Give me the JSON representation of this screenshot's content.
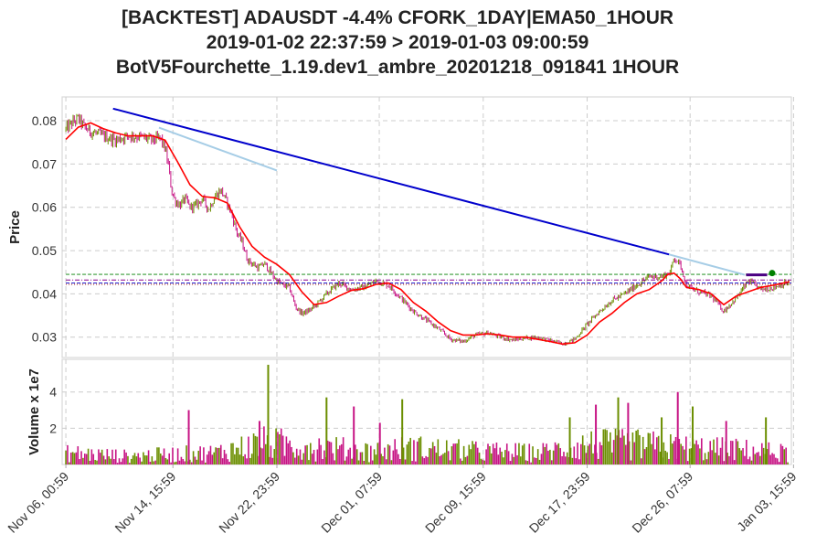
{
  "title": {
    "line1": "[BACKTEST] ADAUSDT -4.4% CFORK_1DAY|EMA50_1HOUR",
    "line2": "2019-01-02 22:37:59 > 2019-01-03 09:00:59",
    "line3": "BotV5Fourchette_1.19.dev1_ambre_20201218_091841 1HOUR"
  },
  "chart_data": [
    {
      "type": "line",
      "panel": "price",
      "ylabel": "Price",
      "ylim": [
        0.0253,
        0.0855
      ],
      "yticks": [
        0.08,
        0.07,
        0.06,
        0.05,
        0.04,
        0.03
      ],
      "ytick_labels": [
        "0.08",
        "0.07",
        "0.06",
        "0.05",
        "0.04",
        "0.03"
      ],
      "x_domain_days": [
        -0.3,
        58.45
      ],
      "xticks_days": [
        0,
        8.625,
        17,
        25.25,
        33.625,
        42,
        50.292,
        58.625
      ],
      "xtick_labels": [
        "Nov 06, 00:59",
        "Nov 14, 15:59",
        "Nov 22, 23:59",
        "Dec 01, 07:59",
        "Dec 09, 15:59",
        "Dec 17, 23:59",
        "Dec 26, 07:59",
        "Jan 03, 15:59"
      ],
      "grid": true,
      "colors": {
        "ema": "#ff0000",
        "candle_up": "#6b8e00",
        "candle_down": "#c71585",
        "trend_main": "#0000cc",
        "trend_secondary": "#a6cde6",
        "short_bar": "#4b0082",
        "entry_marker": "#008000"
      },
      "price_path": {
        "x": [
          0,
          0.5,
          1,
          1.5,
          2,
          3,
          4,
          5,
          6,
          7,
          7.6,
          8,
          8.3,
          8.5,
          8.8,
          9.2,
          9.6,
          10,
          10.5,
          11,
          11.5,
          12,
          12.5,
          13,
          13.4,
          13.8,
          14.2,
          14.6,
          15,
          15.5,
          16,
          16.5,
          17,
          17.5,
          18,
          18.5,
          19,
          19.5,
          20,
          21,
          22,
          23,
          24,
          25,
          26,
          27,
          28,
          29,
          30,
          31,
          32,
          33,
          34,
          35,
          36,
          37,
          38,
          39,
          40,
          41,
          42,
          43,
          44,
          45,
          46,
          47,
          48,
          48.7,
          49,
          49.3,
          49.6,
          50,
          50.5,
          51,
          51.5,
          52,
          53,
          54,
          55,
          56,
          57,
          58
        ],
        "y": [
          0.078,
          0.0795,
          0.0805,
          0.0785,
          0.0775,
          0.0765,
          0.0755,
          0.0765,
          0.0763,
          0.0755,
          0.076,
          0.0735,
          0.069,
          0.064,
          0.0615,
          0.0605,
          0.062,
          0.06,
          0.0605,
          0.062,
          0.0595,
          0.0625,
          0.064,
          0.061,
          0.058,
          0.054,
          0.052,
          0.048,
          0.047,
          0.046,
          0.047,
          0.045,
          0.043,
          0.042,
          0.0415,
          0.037,
          0.0355,
          0.036,
          0.037,
          0.04,
          0.0425,
          0.041,
          0.0415,
          0.043,
          0.042,
          0.039,
          0.036,
          0.034,
          0.032,
          0.0295,
          0.029,
          0.0305,
          0.031,
          0.03,
          0.0293,
          0.0298,
          0.03,
          0.0292,
          0.0285,
          0.0295,
          0.033,
          0.036,
          0.0385,
          0.04,
          0.042,
          0.044,
          0.044,
          0.045,
          0.0485,
          0.0475,
          0.046,
          0.042,
          0.041,
          0.0405,
          0.04,
          0.0395,
          0.036,
          0.039,
          0.043,
          0.041,
          0.0415,
          0.0425
        ]
      },
      "ema50": {
        "x": [
          0,
          1,
          2,
          3,
          4,
          5,
          6,
          7,
          8,
          9,
          10,
          11,
          12,
          13,
          14,
          15,
          16,
          17,
          18,
          19,
          20,
          21,
          22,
          23,
          24,
          25,
          26,
          27,
          28,
          29,
          30,
          31,
          32,
          33,
          34,
          35,
          36,
          37,
          38,
          39,
          40,
          41,
          42,
          43,
          44,
          45,
          46,
          47,
          48,
          48.5,
          49,
          49.5,
          50,
          51,
          52,
          53,
          54,
          55,
          56,
          57,
          58.3
        ],
        "y": [
          0.0757,
          0.0785,
          0.0795,
          0.0782,
          0.0772,
          0.0765,
          0.0765,
          0.0765,
          0.0755,
          0.0705,
          0.0652,
          0.0625,
          0.0622,
          0.061,
          0.0555,
          0.051,
          0.0485,
          0.0468,
          0.0445,
          0.0405,
          0.0375,
          0.038,
          0.0395,
          0.0408,
          0.0412,
          0.0422,
          0.0425,
          0.041,
          0.038,
          0.036,
          0.0335,
          0.0315,
          0.0305,
          0.0305,
          0.0308,
          0.0305,
          0.03,
          0.03,
          0.0295,
          0.029,
          0.0284,
          0.0287,
          0.0305,
          0.0335,
          0.0355,
          0.038,
          0.04,
          0.041,
          0.043,
          0.0445,
          0.0448,
          0.0435,
          0.0415,
          0.041,
          0.04,
          0.0375,
          0.0395,
          0.0405,
          0.0415,
          0.042,
          0.0428
        ]
      },
      "trend_lines": [
        {
          "color": "#0000cc",
          "x": [
            3.8,
            48.6
          ],
          "y": [
            0.0828,
            0.0491
          ]
        },
        {
          "color": "#a6cde6",
          "x": [
            7.5,
            17
          ],
          "y": [
            0.0784,
            0.0685
          ]
        },
        {
          "color": "#a6cde6",
          "x": [
            48.6,
            54.7
          ],
          "y": [
            0.0491,
            0.0444
          ]
        }
      ],
      "horizontal_levels": [
        {
          "y": 0.0445,
          "color": "#008000",
          "style": "dashed"
        },
        {
          "y": 0.0432,
          "color": "#8b008b",
          "style": "dashdot"
        },
        {
          "y": 0.0425,
          "color": "#0000cc",
          "style": "dashed"
        },
        {
          "y": 0.0422,
          "color": "#8b0000",
          "style": "dotted"
        }
      ],
      "short_bar": {
        "x": [
          54.8,
          56.5
        ],
        "y": 0.0444,
        "color": "#4b0082"
      },
      "entry_marker": {
        "x": 56.9,
        "y": 0.0448,
        "color": "#008000"
      }
    },
    {
      "type": "bar",
      "panel": "volume",
      "ylabel": "Volume x 1e7",
      "ylim": [
        0,
        5.8
      ],
      "yticks": [
        2,
        4
      ],
      "ytick_labels": [
        "2",
        "4"
      ],
      "grid": true,
      "baseline_profile": {
        "x": [
          0,
          5,
          8,
          12,
          16,
          20,
          24,
          28,
          33,
          38,
          42,
          46,
          50,
          54,
          58
        ],
        "y": [
          0.7,
          0.5,
          0.6,
          0.7,
          1.3,
          1.1,
          0.8,
          1.0,
          0.8,
          0.7,
          1.2,
          1.2,
          1.0,
          0.9,
          0.7
        ]
      },
      "spikes": [
        {
          "x": 9.9,
          "y": 3.0
        },
        {
          "x": 16.3,
          "y": 5.5
        },
        {
          "x": 15.6,
          "y": 2.4
        },
        {
          "x": 21.0,
          "y": 3.7
        },
        {
          "x": 23.2,
          "y": 3.2
        },
        {
          "x": 27.1,
          "y": 3.6
        },
        {
          "x": 25.3,
          "y": 2.3
        },
        {
          "x": 40.6,
          "y": 2.6
        },
        {
          "x": 42.7,
          "y": 3.3
        },
        {
          "x": 44.5,
          "y": 3.7
        },
        {
          "x": 45.3,
          "y": 3.4
        },
        {
          "x": 48.0,
          "y": 2.6
        },
        {
          "x": 49.3,
          "y": 4.0
        },
        {
          "x": 50.5,
          "y": 3.2
        },
        {
          "x": 53.2,
          "y": 2.4
        },
        {
          "x": 56.4,
          "y": 2.6
        }
      ]
    }
  ]
}
